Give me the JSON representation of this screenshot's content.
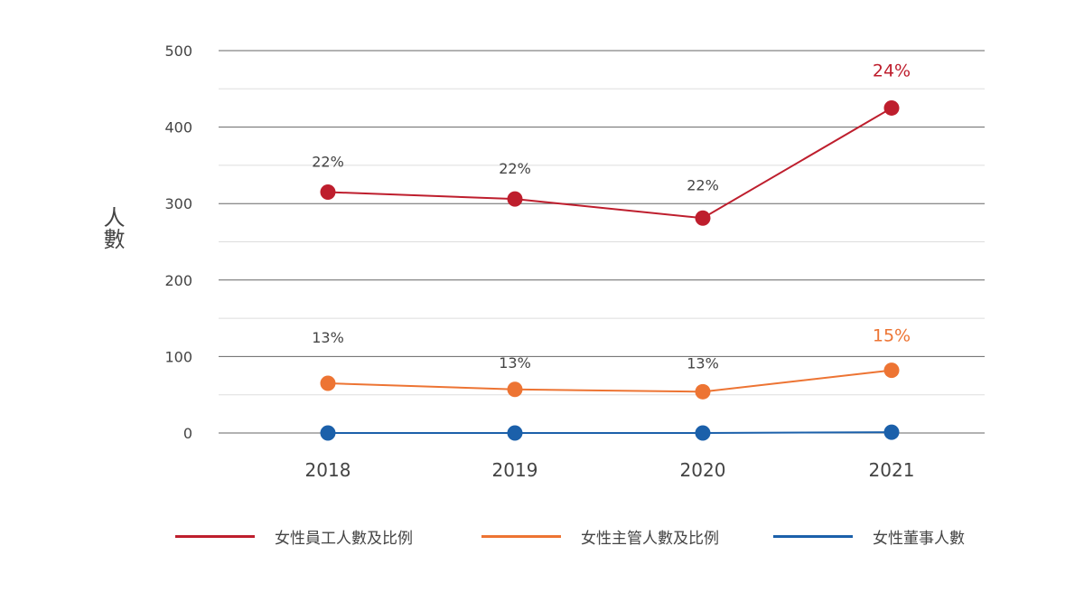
{
  "chart_data": {
    "type": "line",
    "categories": [
      "2018",
      "2019",
      "2020",
      "2021"
    ],
    "ylabel": "人數",
    "ylim": [
      0,
      500
    ],
    "yticks": [
      0,
      100,
      200,
      300,
      400,
      500
    ],
    "grid": true,
    "legend_position": "bottom",
    "series": [
      {
        "name": "女性員工人數及比例",
        "color": "#BE1E2D",
        "values": [
          315,
          306,
          281,
          425
        ],
        "labels": [
          "22%",
          "22%",
          "22%",
          "24%"
        ],
        "label_colors": [
          "#444444",
          "#444444",
          "#444444",
          "#BE1E2D"
        ]
      },
      {
        "name": "女性主管人數及比例",
        "color": "#ED7433",
        "values": [
          65,
          57,
          54,
          82
        ],
        "labels": [
          "13%",
          "13%",
          "13%",
          "15%"
        ],
        "label_colors": [
          "#444444",
          "#444444",
          "#444444",
          "#ED7433"
        ]
      },
      {
        "name": "女性董事人數",
        "color": "#1B60AA",
        "values": [
          0,
          0,
          0,
          1
        ],
        "labels": [],
        "label_colors": []
      }
    ]
  }
}
